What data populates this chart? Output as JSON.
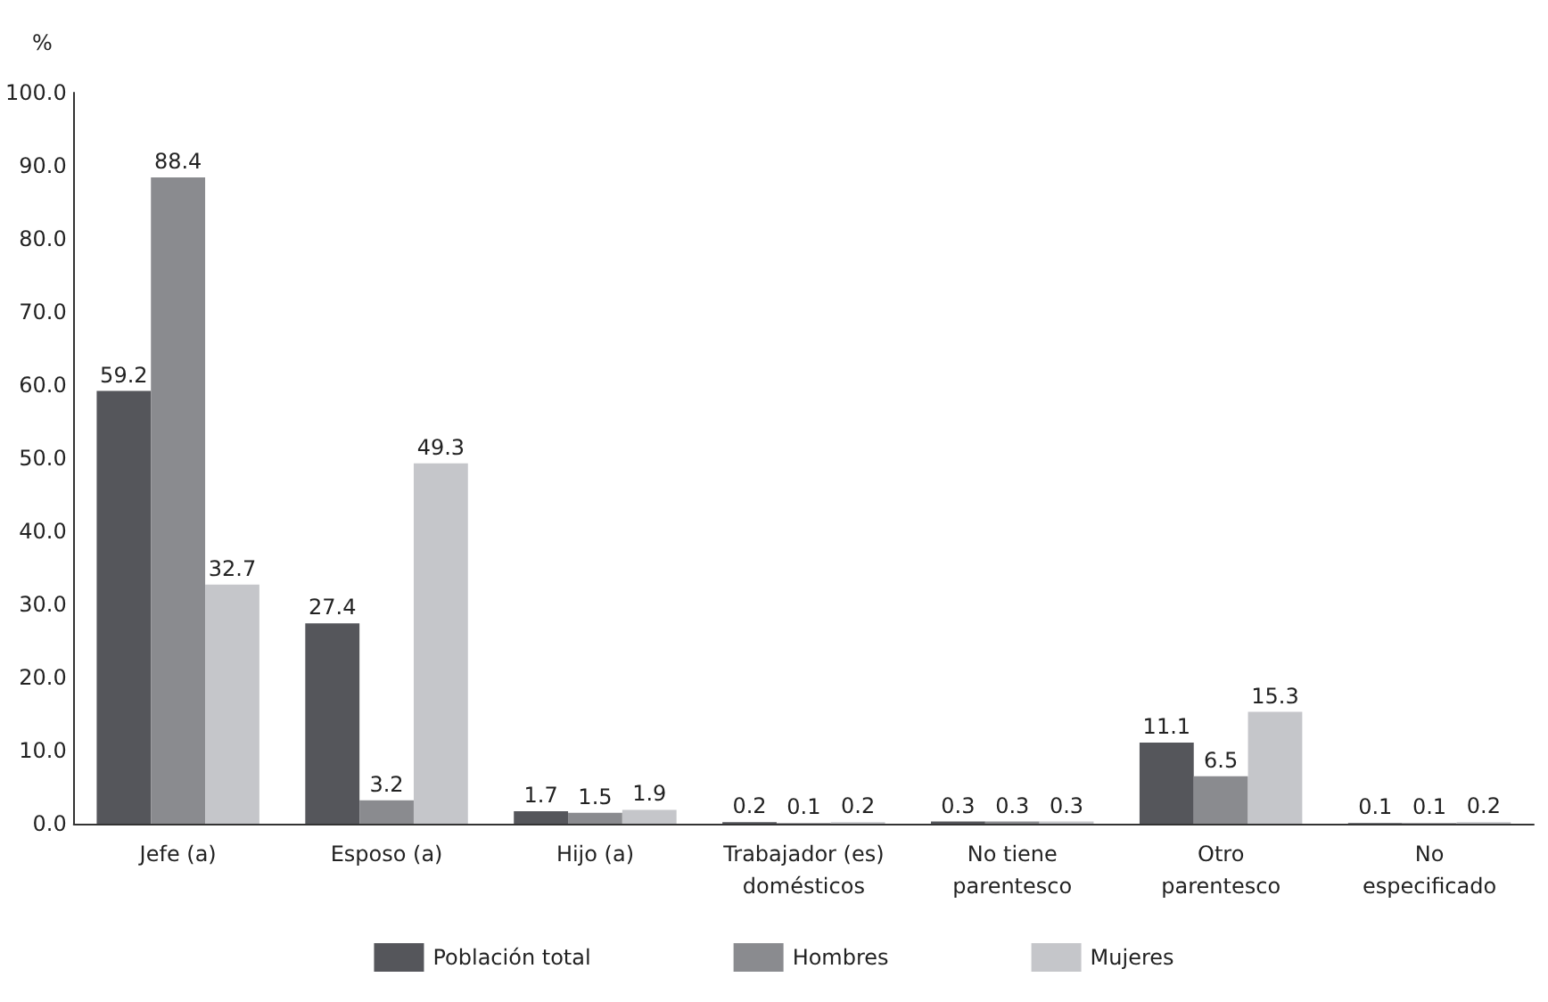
{
  "chart_data": {
    "type": "bar",
    "ylabel": "%",
    "categories": [
      "Jefe (a)",
      "Esposo (a)",
      "Hijo (a)",
      "Trabajador (es)\ndomésticos",
      "No tiene\nparentesco",
      "Otro\nparentesco",
      "No\nespecificado"
    ],
    "series": [
      {
        "name": "Población total",
        "color": "#55565b",
        "values": [
          59.2,
          27.4,
          1.7,
          0.2,
          0.3,
          11.1,
          0.1
        ]
      },
      {
        "name": "Hombres",
        "color": "#8a8b8f",
        "values": [
          88.4,
          3.2,
          1.5,
          0.1,
          0.3,
          6.5,
          0.1
        ]
      },
      {
        "name": "Mujeres",
        "color": "#c5c6ca",
        "values": [
          32.7,
          49.3,
          1.9,
          0.2,
          0.3,
          15.3,
          0.2
        ]
      }
    ],
    "ylim": [
      0,
      100
    ],
    "yticks": [
      {
        "value": 0,
        "label": "0.0"
      },
      {
        "value": 10,
        "label": "10.0"
      },
      {
        "value": 20,
        "label": "20.0"
      },
      {
        "value": 30,
        "label": "30.0"
      },
      {
        "value": 40,
        "label": "40.0"
      },
      {
        "value": 50,
        "label": "50.0"
      },
      {
        "value": 60,
        "label": "60.0"
      },
      {
        "value": 70,
        "label": "70.0"
      },
      {
        "value": 80,
        "label": "80.0"
      },
      {
        "value": 90,
        "label": "90.0"
      },
      {
        "value": 100,
        "label": "100.0"
      }
    ],
    "data_labels": true,
    "grid": false,
    "legend": "bottom"
  }
}
